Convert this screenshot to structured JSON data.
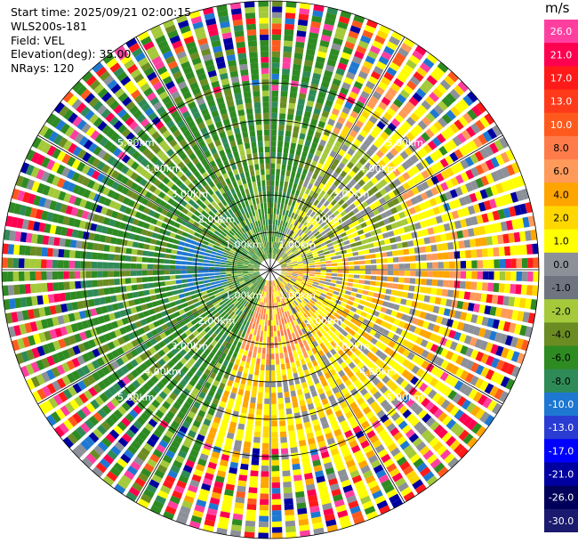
{
  "header": {
    "start_time": "Start time: 2025/09/21 02:00:15",
    "instrument": "WLS200s-181",
    "field": "Field: VEL",
    "elevation": "Elevation(deg): 35.00",
    "nrays": "NRays: 120"
  },
  "chart_data": {
    "type": "heatmap",
    "projection": "polar (PPI)",
    "title": "",
    "field": "VEL",
    "nrays": 120,
    "range_rings_km": [
      1,
      2,
      3,
      4,
      5
    ],
    "range_ring_labels": [
      "1.00km",
      "2.00km",
      "3.00km",
      "4.00km",
      "5.00km"
    ],
    "max_range_km": 7.0,
    "spokes_deg": [
      0,
      30,
      60,
      90,
      120,
      150,
      180,
      210,
      240,
      270,
      300,
      330
    ],
    "colorbar": {
      "title": "m/s",
      "ticks": [
        "26.0",
        "21.0",
        "17.0",
        "13.0",
        "10.0",
        "8.0",
        "6.0",
        "4.0",
        "2.0",
        "1.0",
        "0.0",
        "-1.0",
        "-2.0",
        "-4.0",
        "-6.0",
        "-8.0",
        "-10.0",
        "-13.0",
        "-17.0",
        "-21.0",
        "-26.0",
        "-30.0"
      ],
      "colors": [
        "#ff3fa0",
        "#ff0050",
        "#ff1a1a",
        "#ff3a1a",
        "#ff5a1e",
        "#ff7c4a",
        "#ff9a5a",
        "#ffa500",
        "#ffd700",
        "#ffff00",
        "#8c9099",
        "#6e7580",
        "#a4c93a",
        "#6b8c23",
        "#2e8b22",
        "#2e8b57",
        "#1e78d2",
        "#2a3cd2",
        "#0000ff",
        "#0000a0",
        "#00005a",
        "#1a1a6e"
      ]
    },
    "legend_position": "right"
  },
  "colors": {
    "pos_far": "#ff3fa0",
    "neg_far": "#0000a0",
    "rings": "#000000"
  }
}
